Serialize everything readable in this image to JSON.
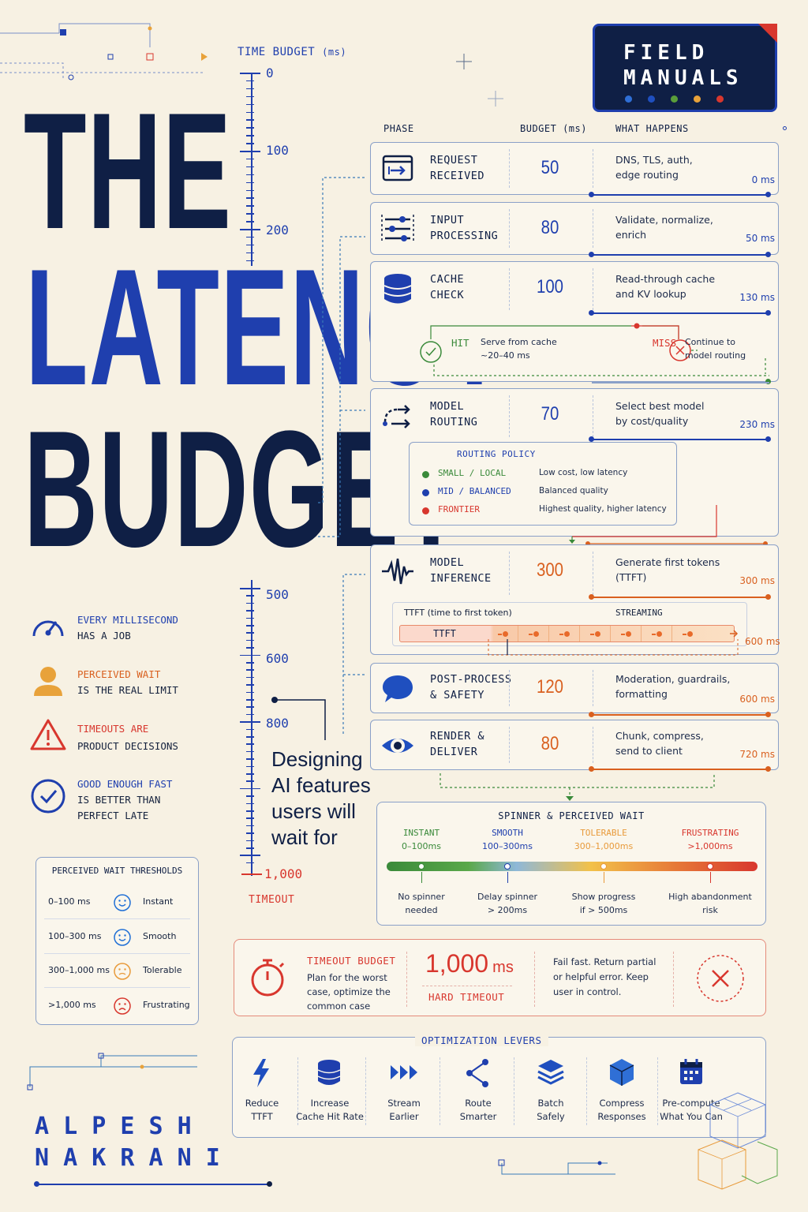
{
  "title": {
    "line1": "THE",
    "line2": "LATENCY",
    "line3": "BUDGET"
  },
  "badge": {
    "line1": "FIELD",
    "line2": "MANUALS",
    "dots": [
      "#2f6fd6",
      "#1f4fbf",
      "#5a9e3a",
      "#e8a23a",
      "#d8372e"
    ]
  },
  "ruler": {
    "title": "TIME BUDGET",
    "unit": "(ms)",
    "labels": [
      "0",
      "100",
      "200",
      "500",
      "600",
      "800",
      "1,000"
    ],
    "timeout": "TIMEOUT"
  },
  "tagline": "Designing\nAI features\nusers will\nwait for",
  "principles": [
    {
      "icon": "gauge-icon",
      "line1": "EVERY MILLISECOND",
      "line2": "HAS A JOB",
      "color": "#1f3fae"
    },
    {
      "icon": "person-icon",
      "line1": "PERCEIVED WAIT",
      "line2": "IS THE REAL LIMIT",
      "color": "#d9601f"
    },
    {
      "icon": "warning-icon",
      "line1": "TIMEOUTS ARE",
      "line2": "PRODUCT DECISIONS",
      "color": "#d8372e"
    },
    {
      "icon": "check-icon",
      "line1": "GOOD ENOUGH FAST",
      "line2": "IS BETTER THAN",
      "line3": "PERFECT LATE",
      "color": "#1f3fae"
    }
  ],
  "thresholds": {
    "title": "PERCEIVED WAIT THRESHOLDS",
    "rows": [
      {
        "range": "0–100 ms",
        "label": "Instant",
        "mood": "happy"
      },
      {
        "range": "100–300 ms",
        "label": "Smooth",
        "mood": "happy"
      },
      {
        "range": "300–1,000 ms",
        "label": "Tolerable",
        "mood": "meh"
      },
      {
        "range": ">1,000 ms",
        "label": "Frustrating",
        "mood": "sad"
      }
    ]
  },
  "table": {
    "headers": {
      "phase": "PHASE",
      "budget": "BUDGET (ms)",
      "what": "WHAT HAPPENS"
    },
    "phases": [
      {
        "icon": "request-icon",
        "name": "REQUEST\nRECEIVED",
        "budget": "50",
        "what": "DNS, TLS, auth,\nedge routing",
        "cum": "0 ms"
      },
      {
        "icon": "sliders-icon",
        "name": "INPUT\nPROCESSING",
        "budget": "80",
        "what": "Validate, normalize,\nenrich",
        "cum": "50 ms"
      },
      {
        "icon": "database-icon",
        "name": "CACHE\nCHECK",
        "budget": "100",
        "what": "Read-through cache\nand KV lookup",
        "cum": "130 ms"
      },
      {
        "icon": "routing-icon",
        "name": "MODEL\nROUTING",
        "budget": "70",
        "what": "Select best model\nby cost/quality",
        "cum": "230 ms"
      },
      {
        "icon": "waveform-icon",
        "name": "MODEL\nINFERENCE",
        "budget": "300",
        "what": "Generate first tokens\n(TTFT)",
        "cum": "300 ms"
      },
      {
        "icon": "chat-icon",
        "name": "POST-PROCESS\n& SAFETY",
        "budget": "120",
        "what": "Moderation, guardrails,\nformatting",
        "cum": "600 ms"
      },
      {
        "icon": "eye-icon",
        "name": "RENDER &\nDELIVER",
        "budget": "80",
        "what": "Chunk, compress,\nsend to client",
        "cum": "720 ms"
      }
    ]
  },
  "cache": {
    "hit": "HIT",
    "hit_text": "Serve from cache\n~20–40 ms",
    "miss": "MISS",
    "miss_text": "Continue to\nmodel routing"
  },
  "routing": {
    "title": "ROUTING POLICY",
    "items": [
      {
        "name": "SMALL / LOCAL",
        "desc": "Low cost, low latency",
        "color": "#3a8a3a"
      },
      {
        "name": "MID / BALANCED",
        "desc": "Balanced quality",
        "color": "#1f3fae"
      },
      {
        "name": "FRONTIER",
        "desc": "Highest quality, higher latency",
        "color": "#d8372e"
      }
    ]
  },
  "ttft": {
    "label": "TTFT (time to first token)",
    "streaming": "STREAMING",
    "bar": "TTFT",
    "end": "600 ms"
  },
  "spinner": {
    "title": "SPINNER & PERCEIVED WAIT",
    "stages": [
      {
        "name": "INSTANT",
        "range": "0–100ms",
        "note": "No spinner\nneeded",
        "color": "#3a8a3a"
      },
      {
        "name": "SMOOTH",
        "range": "100–300ms",
        "note": "Delay spinner\n> 200ms",
        "color": "#1f3fae"
      },
      {
        "name": "TOLERABLE",
        "range": "300–1,000ms",
        "note": "Show progress\nif > 500ms",
        "color": "#e89a3a"
      },
      {
        "name": "FRUSTRATING",
        "range": ">1,000ms",
        "note": "High abandonment\nrisk",
        "color": "#d8372e"
      }
    ]
  },
  "timeout": {
    "title": "TIMEOUT BUDGET",
    "desc": "Plan for the worst\ncase, optimize the\ncommon case",
    "value": "1,000",
    "unit": "ms",
    "sub": "HARD TIMEOUT",
    "advice": "Fail fast. Return partial\nor helpful error. Keep\nuser in control."
  },
  "levers": {
    "title": "OPTIMIZATION LEVERS",
    "items": [
      {
        "icon": "bolt-icon",
        "label": "Reduce\nTTFT"
      },
      {
        "icon": "database-icon",
        "label": "Increase\nCache Hit Rate"
      },
      {
        "icon": "stream-icon",
        "label": "Stream\nEarlier"
      },
      {
        "icon": "share-icon",
        "label": "Route\nSmarter"
      },
      {
        "icon": "layers-icon",
        "label": "Batch\nSafely"
      },
      {
        "icon": "cube-icon",
        "label": "Compress\nResponses"
      },
      {
        "icon": "calendar-icon",
        "label": "Pre-compute\nWhat You Can"
      }
    ]
  },
  "author": {
    "line1": "A L P E S H",
    "line2": "N A K R A N I"
  }
}
